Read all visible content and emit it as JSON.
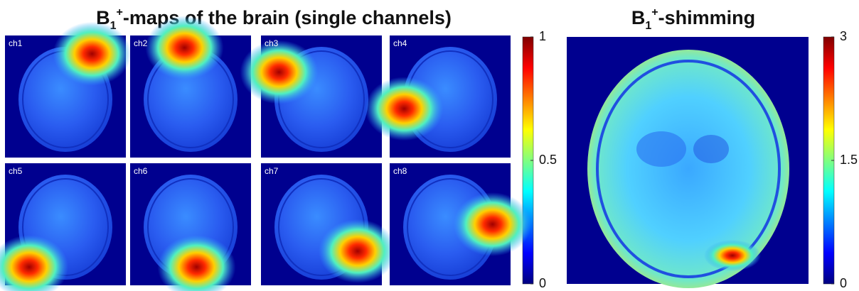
{
  "left": {
    "title": {
      "base": "B",
      "sub": "1",
      "sup": "+",
      "rest": "-maps of the brain (single channels)"
    },
    "panels": [
      "ch1",
      "ch2",
      "ch3",
      "ch4",
      "ch5",
      "ch6",
      "ch7",
      "ch8"
    ],
    "colorbar": {
      "ticks": [
        0,
        0.5,
        1
      ]
    }
  },
  "right": {
    "title": {
      "base": "B",
      "sub": "1",
      "sup": "+",
      "rest": "-shimming"
    },
    "colorbar": {
      "ticks": [
        0,
        1.5,
        3
      ]
    }
  }
}
